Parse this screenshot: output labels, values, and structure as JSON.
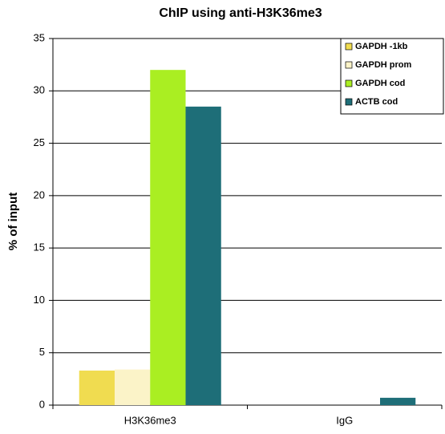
{
  "chart_data": {
    "type": "bar",
    "title": "ChIP using anti-H3K36me3",
    "y_label": "% of input",
    "categories": [
      "H3K36me3",
      "IgG"
    ],
    "series": [
      {
        "name": "GAPDH -1kb",
        "color": "#f0dc50",
        "values": [
          3.3,
          0
        ]
      },
      {
        "name": "GAPDH prom",
        "color": "#fbf3c8",
        "values": [
          3.4,
          0
        ]
      },
      {
        "name": "GAPDH cod",
        "color": "#aaee22",
        "values": [
          32,
          0
        ]
      },
      {
        "name": "ACTB cod",
        "color": "#1e6e78",
        "values": [
          28.5,
          0.7
        ]
      }
    ],
    "ylim": [
      0,
      35
    ],
    "yticks": [
      0,
      5,
      10,
      15,
      20,
      25,
      30,
      35
    ],
    "grid": true,
    "legend": "top-right"
  }
}
